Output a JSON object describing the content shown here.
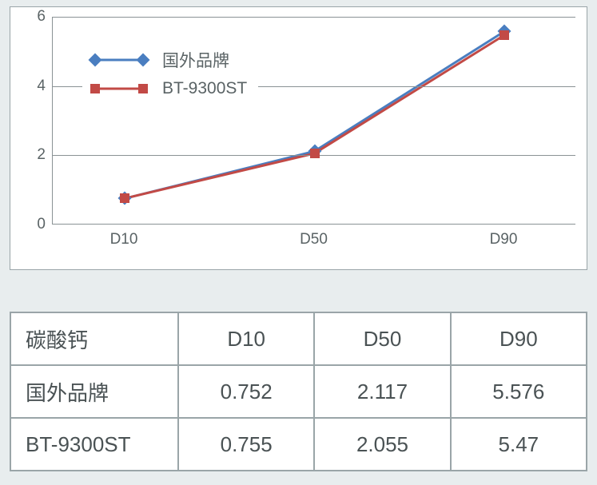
{
  "chart": {
    "type": "line",
    "background_color": "#ffffff",
    "grid_color": "#8a9295",
    "axis_color": "#8a9295",
    "tick_color": "#5a6365",
    "tick_fontsize": 19,
    "ylim": [
      0,
      6
    ],
    "ytick_step": 2,
    "yticks": [
      0,
      2,
      4,
      6
    ],
    "categories": [
      "D10",
      "D50",
      "D90"
    ],
    "series": [
      {
        "name": "国外品牌",
        "values": [
          0.752,
          2.117,
          5.576
        ],
        "line_color": "#4a7ec0",
        "line_width": 3,
        "marker_shape": "diamond",
        "marker_color": "#4a7ec0",
        "marker_size": 12
      },
      {
        "name": "BT-9300ST",
        "values": [
          0.755,
          2.055,
          5.47
        ],
        "line_color": "#c24a46",
        "line_width": 3,
        "marker_shape": "square",
        "marker_color": "#c24a46",
        "marker_size": 12
      }
    ],
    "legend": {
      "position": "inside-top-left",
      "fontsize": 21,
      "text_color": "#5a6365"
    }
  },
  "table": {
    "corner_label": "碳酸钙",
    "columns": [
      "D10",
      "D50",
      "D90"
    ],
    "rows": [
      {
        "label": "国外品牌",
        "cells": [
          "0.752",
          "2.117",
          "5.576"
        ]
      },
      {
        "label": "BT-9300ST",
        "cells": [
          "0.755",
          "2.055",
          "5.47"
        ]
      }
    ],
    "fontsize": 26,
    "text_color": "#4a5254",
    "border_color": "#9aa5a8",
    "background_color": "#ffffff"
  },
  "colors": {
    "page_background": "#e8edee"
  }
}
